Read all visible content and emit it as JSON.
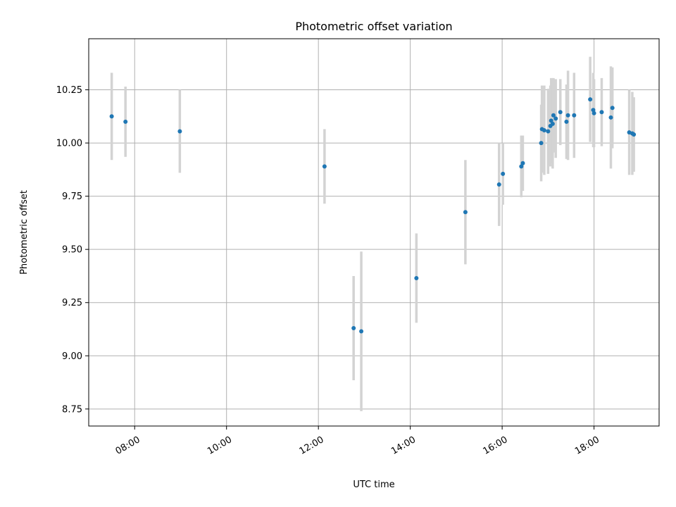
{
  "chart_data": {
    "type": "scatter",
    "title": "Photometric offset variation",
    "xlabel": "UTC time",
    "ylabel": "Photometric offset",
    "xlim": [
      "07:00",
      "19:25"
    ],
    "ylim": [
      8.67,
      10.49
    ],
    "grid": true,
    "x_ticks": [
      "08:00",
      "10:00",
      "12:00",
      "14:00",
      "16:00",
      "18:00"
    ],
    "y_ticks": [
      "8.75",
      "9.00",
      "9.25",
      "9.50",
      "9.75",
      "10.00",
      "10.25"
    ],
    "colors": {
      "point": "#1f77b4",
      "errorbar": "#d3d3d3"
    },
    "points": [
      {
        "x": "07:30",
        "y": 10.125,
        "yerr": 0.205
      },
      {
        "x": "07:48",
        "y": 10.1,
        "yerr": 0.165
      },
      {
        "x": "08:59",
        "y": 10.055,
        "yerr": 0.195
      },
      {
        "x": "12:08",
        "y": 9.89,
        "yerr": 0.175
      },
      {
        "x": "12:46",
        "y": 9.13,
        "yerr": 0.245
      },
      {
        "x": "12:56",
        "y": 9.115,
        "yerr": 0.375
      },
      {
        "x": "14:08",
        "y": 9.365,
        "yerr": 0.21
      },
      {
        "x": "15:12",
        "y": 9.675,
        "yerr": 0.245
      },
      {
        "x": "15:56",
        "y": 9.805,
        "yerr": 0.195
      },
      {
        "x": "16:01",
        "y": 9.855,
        "yerr": 0.145
      },
      {
        "x": "16:25",
        "y": 9.89,
        "yerr": 0.145
      },
      {
        "x": "16:27",
        "y": 9.905,
        "yerr": 0.13
      },
      {
        "x": "16:51",
        "y": 10.0,
        "yerr": 0.18
      },
      {
        "x": "16:52",
        "y": 10.065,
        "yerr": 0.205
      },
      {
        "x": "16:55",
        "y": 10.06,
        "yerr": 0.21
      },
      {
        "x": "17:00",
        "y": 10.055,
        "yerr": 0.2
      },
      {
        "x": "17:03",
        "y": 10.08,
        "yerr": 0.19
      },
      {
        "x": "17:04",
        "y": 10.105,
        "yerr": 0.2
      },
      {
        "x": "17:06",
        "y": 10.09,
        "yerr": 0.21
      },
      {
        "x": "17:07",
        "y": 10.13,
        "yerr": 0.175
      },
      {
        "x": "17:10",
        "y": 10.115,
        "yerr": 0.185
      },
      {
        "x": "17:16",
        "y": 10.145,
        "yerr": 0.155
      },
      {
        "x": "17:24",
        "y": 10.1,
        "yerr": 0.175
      },
      {
        "x": "17:26",
        "y": 10.13,
        "yerr": 0.21
      },
      {
        "x": "17:34",
        "y": 10.13,
        "yerr": 0.2
      },
      {
        "x": "17:55",
        "y": 10.205,
        "yerr": 0.2
      },
      {
        "x": "17:59",
        "y": 10.155,
        "yerr": 0.175
      },
      {
        "x": "18:00",
        "y": 10.14,
        "yerr": 0.16
      },
      {
        "x": "18:10",
        "y": 10.145,
        "yerr": 0.16
      },
      {
        "x": "18:22",
        "y": 10.12,
        "yerr": 0.24
      },
      {
        "x": "18:24",
        "y": 10.165,
        "yerr": 0.19
      },
      {
        "x": "18:46",
        "y": 10.05,
        "yerr": 0.2
      },
      {
        "x": "18:50",
        "y": 10.045,
        "yerr": 0.195
      },
      {
        "x": "18:52",
        "y": 10.04,
        "yerr": 0.175
      }
    ]
  }
}
